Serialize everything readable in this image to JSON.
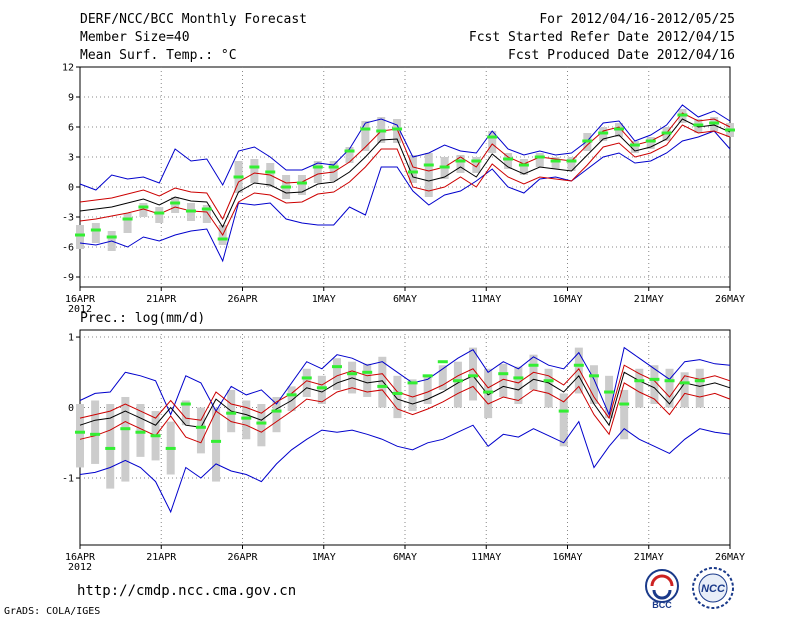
{
  "header": {
    "title": "DERF/NCC/BCC Monthly Forecast",
    "member_size": "Member Size=40",
    "variable1": "Mean Surf. Temp.: °C",
    "period": "For 2012/04/16-2012/05/25",
    "refer_date": "Fcst Started Refer Date 2012/04/15",
    "produced_date": "Fcst Produced Date 2012/04/16",
    "variable2": "Prec.: log(mm/d)"
  },
  "footer": {
    "url": "http://cmdp.ncc.cma.gov.cn",
    "credit": "GrADS: COLA/IGES",
    "logo1_label": "BCC",
    "logo2_label": "NCC"
  },
  "colors": {
    "max_min": "#0000cc",
    "sd": "#cc0000",
    "mean": "#000000",
    "box": "#cccccc",
    "obs": "#33ee33"
  },
  "chart_data": [
    {
      "type": "line",
      "title": "Mean Surf. Temp.: °C",
      "days": 40,
      "x_tick_labels": [
        "16APR",
        "21APR",
        "26APR",
        "1MAY",
        "6MAY",
        "11MAY",
        "16MAY",
        "21MAY",
        "26MAY"
      ],
      "x_year_label": "2012",
      "ylim": [
        -10,
        12
      ],
      "y_ticks": [
        -9,
        -6,
        -3,
        0,
        3,
        6,
        9,
        12
      ],
      "series": {
        "mean": [
          -2.4,
          -2.2,
          -2.0,
          -1.6,
          -1.2,
          -1.8,
          -1.0,
          -1.4,
          -1.5,
          -4.0,
          -0.5,
          0.4,
          0.2,
          -0.6,
          -0.5,
          0.3,
          0.5,
          1.5,
          3.0,
          4.7,
          4.8,
          1.0,
          0.6,
          1.0,
          2.0,
          1.0,
          3.3,
          2.0,
          1.3,
          2.0,
          1.8,
          1.6,
          3.2,
          4.8,
          5.2,
          3.6,
          4.0,
          4.8,
          6.8,
          6.0,
          6.2,
          5.5
        ],
        "high": [
          -1.5,
          -1.3,
          -1.1,
          -0.7,
          -0.3,
          -0.9,
          -0.1,
          -0.5,
          -0.6,
          -3.2,
          0.5,
          1.4,
          1.2,
          0.4,
          0.5,
          1.3,
          1.5,
          2.5,
          4.0,
          5.6,
          5.8,
          2.0,
          1.6,
          2.0,
          3.0,
          2.0,
          4.3,
          3.0,
          2.3,
          3.0,
          2.8,
          2.6,
          4.2,
          5.6,
          6.0,
          4.2,
          4.6,
          5.4,
          7.4,
          6.6,
          6.8,
          6.0
        ],
        "low": [
          -3.4,
          -3.2,
          -2.9,
          -2.6,
          -2.2,
          -2.7,
          -2.0,
          -2.4,
          -2.5,
          -4.8,
          -1.5,
          -0.6,
          -0.8,
          -1.6,
          -1.5,
          -0.7,
          -0.5,
          0.5,
          2.0,
          3.8,
          3.8,
          0.0,
          -0.4,
          0.0,
          1.0,
          0.0,
          2.3,
          1.0,
          0.3,
          1.0,
          0.8,
          0.6,
          2.2,
          4.0,
          4.4,
          3.0,
          3.4,
          4.2,
          6.2,
          5.4,
          5.6,
          5.0
        ],
        "max": [
          0.3,
          -0.3,
          1.2,
          0.8,
          1.0,
          0.4,
          3.8,
          2.6,
          2.8,
          0.2,
          3.6,
          4.0,
          3.0,
          1.7,
          1.7,
          2.4,
          2.2,
          3.8,
          6.4,
          6.8,
          6.2,
          3.0,
          3.4,
          4.2,
          3.6,
          3.4,
          5.6,
          3.8,
          3.2,
          3.6,
          3.2,
          3.4,
          4.6,
          6.4,
          6.6,
          4.6,
          5.2,
          6.2,
          8.2,
          7.0,
          7.6,
          6.6
        ],
        "min": [
          -5.6,
          -5.8,
          -5.4,
          -6.0,
          -5.0,
          -5.4,
          -4.8,
          -4.4,
          -4.2,
          -7.4,
          -1.6,
          -1.8,
          -1.6,
          -3.2,
          -3.6,
          -3.8,
          -3.8,
          -2.0,
          -2.8,
          2.0,
          2.0,
          -0.4,
          -1.8,
          -0.8,
          -0.4,
          0.6,
          1.8,
          0.0,
          -0.6,
          0.8,
          1.0,
          0.6,
          1.8,
          3.0,
          3.4,
          2.4,
          2.6,
          3.4,
          4.6,
          5.0,
          5.6,
          3.8
        ],
        "obs": [
          -4.8,
          -4.3,
          -5.0,
          -3.2,
          -2.0,
          -2.6,
          -1.6,
          -2.4,
          -2.2,
          -5.2,
          1.0,
          2.0,
          1.5,
          0.0,
          0.4,
          2.0,
          2.0,
          3.6,
          5.8,
          5.6,
          5.8,
          1.5,
          2.2,
          2.0,
          2.6,
          2.6,
          5.0,
          2.8,
          2.2,
          3.0,
          2.6,
          2.6,
          4.6,
          5.4,
          5.8,
          4.2,
          4.6,
          5.4,
          7.2,
          6.2,
          6.4,
          5.7
        ],
        "box_top": [
          -3.8,
          -3.6,
          -4.4,
          -2.6,
          -1.6,
          -2.0,
          -1.0,
          -1.6,
          -1.8,
          -3.8,
          2.6,
          2.8,
          2.4,
          1.2,
          1.2,
          2.6,
          2.6,
          4.0,
          6.6,
          7.0,
          6.8,
          3.2,
          3.4,
          3.0,
          3.2,
          3.0,
          5.6,
          3.4,
          2.8,
          3.4,
          3.0,
          3.0,
          5.4,
          6.0,
          6.4,
          4.6,
          5.0,
          6.0,
          7.8,
          6.8,
          7.0,
          6.4
        ],
        "box_bot": [
          -6.2,
          -5.6,
          -6.4,
          -4.6,
          -3.0,
          -3.6,
          -2.6,
          -3.4,
          -3.6,
          -5.8,
          -0.6,
          0.4,
          0.0,
          -1.2,
          -0.8,
          0.4,
          0.6,
          2.4,
          3.6,
          4.4,
          4.4,
          0.4,
          -1.0,
          0.8,
          1.4,
          1.4,
          3.4,
          1.8,
          1.2,
          2.0,
          1.8,
          1.6,
          3.6,
          4.6,
          5.0,
          3.4,
          3.8,
          4.6,
          6.4,
          5.4,
          5.6,
          5.0
        ]
      }
    },
    {
      "type": "line",
      "title": "Prec.: log(mm/d)",
      "days": 40,
      "x_tick_labels": [
        "16APR",
        "21APR",
        "26APR",
        "1MAY",
        "6MAY",
        "11MAY",
        "16MAY",
        "21MAY",
        "26MAY"
      ],
      "x_year_label": "2012",
      "ylim": [
        -1.95,
        1.1
      ],
      "y_ticks": [
        -1,
        0,
        1
      ],
      "series": {
        "mean": [
          -0.25,
          -0.18,
          -0.15,
          -0.05,
          -0.15,
          -0.25,
          0.0,
          -0.25,
          -0.28,
          0.12,
          -0.05,
          -0.1,
          -0.18,
          -0.02,
          0.1,
          0.28,
          0.22,
          0.35,
          0.42,
          0.35,
          0.38,
          0.12,
          0.05,
          0.12,
          0.22,
          0.35,
          0.45,
          0.18,
          0.3,
          0.25,
          0.4,
          0.35,
          0.22,
          0.45,
          0.05,
          -0.25,
          0.5,
          0.38,
          0.28,
          0.05,
          0.35,
          0.3,
          0.35,
          0.28
        ],
        "high": [
          -0.15,
          -0.1,
          -0.05,
          0.05,
          -0.05,
          -0.15,
          0.1,
          -0.15,
          -0.18,
          0.22,
          0.05,
          0.0,
          -0.08,
          0.08,
          0.2,
          0.38,
          0.32,
          0.45,
          0.52,
          0.45,
          0.48,
          0.22,
          0.15,
          0.22,
          0.32,
          0.45,
          0.55,
          0.28,
          0.4,
          0.35,
          0.5,
          0.45,
          0.32,
          0.55,
          0.15,
          -0.15,
          0.6,
          0.48,
          0.38,
          0.15,
          0.45,
          0.4,
          0.45,
          0.38
        ],
        "low": [
          -0.45,
          -0.4,
          -0.32,
          -0.2,
          -0.3,
          -0.4,
          -0.12,
          -0.42,
          -0.5,
          -0.05,
          -0.2,
          -0.25,
          -0.35,
          -0.2,
          -0.05,
          0.12,
          0.08,
          0.22,
          0.28,
          0.22,
          0.25,
          -0.02,
          -0.1,
          -0.02,
          0.08,
          0.2,
          0.3,
          0.05,
          0.15,
          0.1,
          0.25,
          0.2,
          0.08,
          0.3,
          -0.1,
          -0.38,
          0.35,
          0.22,
          0.12,
          -0.1,
          0.2,
          0.15,
          0.2,
          0.12
        ],
        "max": [
          0.1,
          0.2,
          0.22,
          0.5,
          0.45,
          0.38,
          -0.1,
          0.45,
          0.35,
          -0.05,
          0.3,
          0.18,
          0.25,
          0.05,
          0.35,
          0.65,
          0.55,
          0.75,
          0.7,
          0.6,
          0.65,
          0.5,
          0.35,
          0.4,
          0.55,
          0.7,
          0.82,
          0.5,
          0.65,
          0.55,
          0.72,
          0.6,
          0.55,
          0.78,
          0.4,
          -0.1,
          0.85,
          0.7,
          0.55,
          0.4,
          0.65,
          0.68,
          0.62,
          0.6
        ],
        "min": [
          -0.95,
          -0.92,
          -0.85,
          -0.75,
          -0.85,
          -1.05,
          -1.48,
          -0.85,
          -1.0,
          -0.8,
          -0.9,
          -0.95,
          -1.05,
          -0.8,
          -0.6,
          -0.45,
          -0.32,
          -0.35,
          -0.32,
          -0.38,
          -0.45,
          -0.55,
          -0.6,
          -0.5,
          -0.45,
          -0.35,
          -0.25,
          -0.55,
          -0.38,
          -0.42,
          -0.3,
          -0.4,
          -0.5,
          -0.2,
          -0.85,
          -0.55,
          -0.3,
          -0.45,
          -0.55,
          -0.65,
          -0.45,
          -0.3,
          -0.35,
          -0.38
        ],
        "obs": [
          -0.35,
          -0.38,
          -0.58,
          -0.3,
          -0.35,
          -0.4,
          -0.58,
          0.05,
          -0.28,
          -0.48,
          -0.08,
          -0.15,
          -0.22,
          -0.05,
          0.18,
          0.42,
          0.28,
          0.58,
          0.48,
          0.5,
          0.3,
          0.2,
          0.35,
          0.45,
          0.65,
          0.38,
          0.45,
          0.22,
          0.48,
          0.42,
          0.6,
          0.38,
          -0.05,
          0.6,
          0.45,
          0.22,
          0.05,
          0.38,
          0.4,
          0.38,
          0.35,
          0.38
        ],
        "box_top": [
          0.05,
          0.1,
          0.05,
          0.15,
          0.05,
          -0.05,
          -0.2,
          0.1,
          0.0,
          0.0,
          0.25,
          0.1,
          0.05,
          0.15,
          0.3,
          0.55,
          0.45,
          0.7,
          0.65,
          0.62,
          0.72,
          0.45,
          0.4,
          0.45,
          0.6,
          0.65,
          0.85,
          0.55,
          0.62,
          0.58,
          0.75,
          0.55,
          0.2,
          0.85,
          0.6,
          0.45,
          0.25,
          0.55,
          0.6,
          0.55,
          0.5,
          0.55
        ],
        "box_bot": [
          -0.85,
          -0.8,
          -1.15,
          -1.05,
          -0.7,
          -0.75,
          -0.95,
          -0.25,
          -0.65,
          -1.05,
          -0.35,
          -0.45,
          -0.55,
          -0.35,
          -0.05,
          0.15,
          0.05,
          0.25,
          0.2,
          0.15,
          0.0,
          -0.15,
          -0.05,
          0.05,
          0.25,
          0.0,
          0.1,
          -0.15,
          0.15,
          0.05,
          0.25,
          0.0,
          -0.55,
          0.2,
          0.05,
          -0.15,
          -0.45,
          0.0,
          0.05,
          0.0,
          0.0,
          0.0
        ]
      }
    }
  ]
}
